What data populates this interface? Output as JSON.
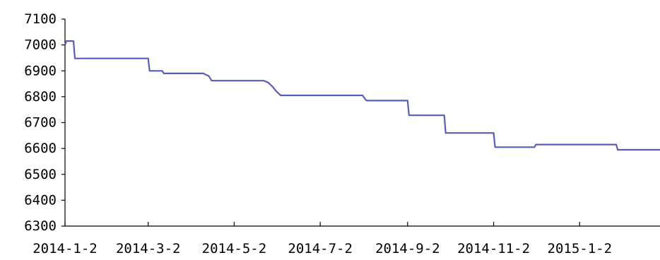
{
  "chart_data": {
    "type": "line",
    "title": "",
    "xlabel": "",
    "ylabel": "",
    "ylim": [
      6300,
      7100
    ],
    "yticks": [
      6300,
      6400,
      6500,
      6600,
      6700,
      6800,
      6900,
      7000,
      7100
    ],
    "ytick_labels": [
      "6300",
      "6400",
      "6500",
      "6600",
      "6700",
      "6800",
      "6900",
      "7000",
      "7100"
    ],
    "xlim": [
      "2014-01-02",
      "2015-02-28"
    ],
    "xticks": [
      "2014-01-02",
      "2014-03-02",
      "2014-05-02",
      "2014-07-02",
      "2014-09-02",
      "2014-11-02",
      "2015-01-02"
    ],
    "xtick_labels": [
      "2014-1-2",
      "2014-3-2",
      "2014-5-2",
      "2014-7-2",
      "2014-9-2",
      "2014-11-2",
      "2015-1-2"
    ],
    "grid": false,
    "legend": "none",
    "series": [
      {
        "color": "#5b5bb8",
        "x": [
          "2014-01-02",
          "2014-01-03",
          "2014-01-08",
          "2014-01-09",
          "2014-03-02",
          "2014-03-03",
          "2014-03-12",
          "2014-03-13",
          "2014-04-10",
          "2014-04-14",
          "2014-04-16",
          "2014-05-23",
          "2014-05-26",
          "2014-05-29",
          "2014-06-01",
          "2014-06-03",
          "2014-06-04",
          "2014-08-01",
          "2014-08-03",
          "2014-08-04",
          "2014-09-02",
          "2014-09-03",
          "2014-09-28",
          "2014-09-29",
          "2014-11-02",
          "2014-11-03",
          "2014-12-01",
          "2014-12-02",
          "2015-01-28",
          "2015-01-29",
          "2015-02-28"
        ],
        "y": [
          7000,
          7015,
          7015,
          6948,
          6948,
          6900,
          6900,
          6890,
          6890,
          6880,
          6862,
          6862,
          6855,
          6840,
          6820,
          6810,
          6805,
          6805,
          6790,
          6785,
          6785,
          6728,
          6728,
          6660,
          6660,
          6605,
          6605,
          6615,
          6615,
          6595,
          6595
        ]
      }
    ]
  }
}
